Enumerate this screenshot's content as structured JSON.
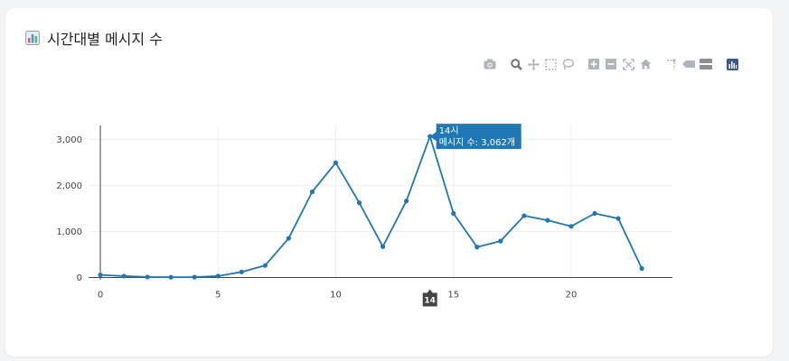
{
  "card": {
    "title": "시간대별 메시지 수",
    "title_icon": "bar-chart-emoji-icon"
  },
  "modebar": {
    "buttons": [
      {
        "name": "camera-icon"
      },
      {
        "name": "zoom-icon"
      },
      {
        "name": "pan-icon"
      },
      {
        "name": "box-select-icon"
      },
      {
        "name": "lasso-select-icon"
      },
      {
        "name": "zoom-in-icon"
      },
      {
        "name": "zoom-out-icon"
      },
      {
        "name": "autoscale-icon"
      },
      {
        "name": "reset-axes-icon"
      },
      {
        "name": "spike-lines-icon"
      },
      {
        "name": "hover-closest-icon"
      },
      {
        "name": "hover-compare-icon"
      },
      {
        "name": "plotly-logo-icon"
      }
    ]
  },
  "chart_data": {
    "type": "line",
    "x": [
      0,
      1,
      2,
      3,
      4,
      5,
      6,
      7,
      8,
      9,
      10,
      11,
      12,
      13,
      14,
      15,
      16,
      17,
      18,
      19,
      20,
      21,
      22,
      23
    ],
    "series": [
      {
        "values": [
          55,
          30,
          10,
          5,
          8,
          30,
          120,
          260,
          850,
          1860,
          2490,
          1620,
          670,
          1660,
          3062,
          1390,
          660,
          790,
          1340,
          1240,
          1110,
          1390,
          1280,
          195
        ],
        "color": "#1f77b4"
      }
    ],
    "xlim": [
      -0.5,
      24.3
    ],
    "ylim": [
      -50,
      3300
    ],
    "xticks": [
      0,
      5,
      10,
      15,
      20
    ],
    "xtick_labels": [
      "0",
      "5",
      "10",
      "15",
      "20"
    ],
    "yticks": [
      0,
      1000,
      2000,
      3000
    ],
    "ytick_labels": [
      "0",
      "1,000",
      "2,000",
      "3,000"
    ],
    "grid": true,
    "hover": {
      "x": 14,
      "line1": "14시",
      "line2": "메시지 수: 3,062개",
      "xspike_label": "14"
    }
  }
}
